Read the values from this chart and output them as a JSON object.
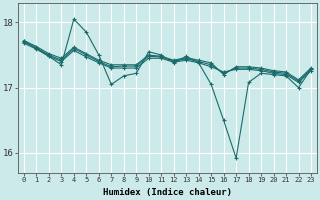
{
  "title": "",
  "xlabel": "Humidex (Indice chaleur)",
  "background_color": "#cceaea",
  "grid_color": "#ffffff",
  "line_color": "#1a6b6b",
  "ylim": [
    15.7,
    18.3
  ],
  "yticks": [
    16,
    17,
    18
  ],
  "xlim": [
    -0.5,
    23.5
  ],
  "xticks": [
    0,
    1,
    2,
    3,
    4,
    5,
    6,
    7,
    8,
    9,
    10,
    11,
    12,
    13,
    14,
    15,
    16,
    17,
    18,
    19,
    20,
    21,
    22,
    23
  ],
  "lines": [
    [
      17.72,
      17.6,
      17.48,
      17.35,
      18.05,
      17.85,
      17.5,
      17.05,
      17.18,
      17.22,
      17.55,
      17.5,
      17.38,
      17.48,
      17.38,
      17.05,
      16.5,
      15.92,
      17.08,
      17.22,
      17.2,
      17.18,
      17.0,
      17.28
    ],
    [
      17.72,
      17.63,
      17.52,
      17.45,
      17.62,
      17.52,
      17.42,
      17.35,
      17.35,
      17.35,
      17.5,
      17.48,
      17.42,
      17.46,
      17.42,
      17.38,
      17.2,
      17.32,
      17.32,
      17.3,
      17.26,
      17.24,
      17.12,
      17.3
    ],
    [
      17.7,
      17.61,
      17.5,
      17.42,
      17.6,
      17.5,
      17.4,
      17.32,
      17.33,
      17.33,
      17.48,
      17.47,
      17.41,
      17.44,
      17.4,
      17.35,
      17.22,
      17.3,
      17.3,
      17.28,
      17.24,
      17.22,
      17.1,
      17.28
    ],
    [
      17.68,
      17.59,
      17.48,
      17.4,
      17.57,
      17.47,
      17.38,
      17.3,
      17.3,
      17.3,
      17.45,
      17.45,
      17.39,
      17.42,
      17.38,
      17.32,
      17.24,
      17.28,
      17.28,
      17.26,
      17.22,
      17.2,
      17.08,
      17.26
    ]
  ]
}
